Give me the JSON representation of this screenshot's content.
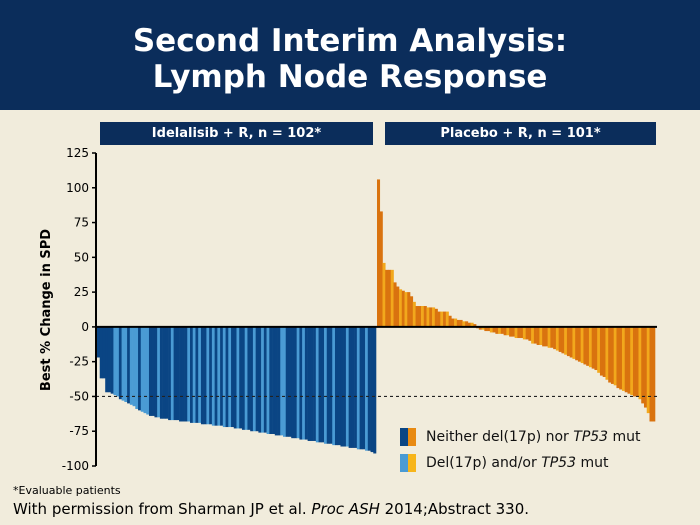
{
  "title": {
    "line1": "Second Interim Analysis:",
    "line2": "Lymph Node Response"
  },
  "footnote": "*Evaluable patients",
  "citation": {
    "pre": "With permission from Sharman JP et al. ",
    "em": "Proc ASH",
    "post": " 2014;Abstract 330."
  },
  "colors": {
    "navy": "#0b2d5b",
    "ide_dark": "#0a4584",
    "ide_light": "#4a9bd4",
    "pla_dark": "#d9730f",
    "pla_light": "#f2a81c"
  },
  "chart_data": {
    "type": "bar",
    "ylabel": "Best % Change in SPD",
    "ylim": [
      -100,
      125
    ],
    "yticks": [
      125,
      100,
      75,
      50,
      25,
      0,
      -25,
      -50,
      -75,
      -100
    ],
    "reference_line": -50,
    "legend": {
      "position": "bottom-right",
      "items": [
        {
          "pre": "Neither del(17p) nor ",
          "em": "TP53",
          "post": " mut"
        },
        {
          "pre": "Del(17p) and/or ",
          "em": "TP53",
          "post": " mut"
        }
      ]
    },
    "panels": [
      {
        "label": "Idelalisib + R, n = 102*",
        "values": [
          -22,
          -37,
          -37,
          -47,
          -47,
          -48,
          -49,
          -50,
          -52,
          -53,
          -54,
          -55,
          -56,
          -57,
          -59,
          -60,
          -61,
          -62,
          -63,
          -64,
          -64,
          -65,
          -65,
          -66,
          -66,
          -66,
          -67,
          -67,
          -67,
          -67,
          -68,
          -68,
          -68,
          -68,
          -69,
          -69,
          -69,
          -69,
          -70,
          -70,
          -70,
          -70,
          -71,
          -71,
          -71,
          -71,
          -72,
          -72,
          -72,
          -72,
          -73,
          -73,
          -73,
          -74,
          -74,
          -74,
          -75,
          -75,
          -75,
          -76,
          -76,
          -76,
          -77,
          -77,
          -77,
          -78,
          -78,
          -78,
          -79,
          -79,
          -79,
          -80,
          -80,
          -80,
          -81,
          -81,
          -81,
          -82,
          -82,
          -82,
          -83,
          -83,
          -83,
          -84,
          -84,
          -84,
          -85,
          -85,
          -85,
          -86,
          -86,
          -86,
          -87,
          -87,
          -87,
          -88,
          -88,
          -88,
          -89,
          -89,
          -90,
          -91
        ],
        "del17p_idx": [
          6,
          7,
          9,
          10,
          12,
          13,
          14,
          16,
          17,
          18,
          22,
          27,
          33,
          35,
          37,
          40,
          42,
          44,
          46,
          48,
          51,
          54,
          57,
          60,
          62,
          67,
          68,
          73,
          75,
          80,
          83,
          86,
          91,
          95,
          98
        ]
      },
      {
        "label": "Placebo + R, n = 101*",
        "values": [
          106,
          83,
          46,
          41,
          41,
          41,
          32,
          29,
          27,
          26,
          25,
          25,
          22,
          18,
          15,
          15,
          15,
          15,
          14,
          14,
          14,
          13,
          11,
          11,
          11,
          11,
          8,
          6,
          6,
          5,
          5,
          4,
          4,
          3,
          3,
          2,
          -1,
          -2,
          -2,
          -3,
          -3,
          -4,
          -4,
          -5,
          -5,
          -5,
          -6,
          -6,
          -7,
          -7,
          -8,
          -8,
          -8,
          -9,
          -9,
          -10,
          -12,
          -12,
          -13,
          -13,
          -14,
          -14,
          -15,
          -15,
          -16,
          -17,
          -18,
          -19,
          -20,
          -21,
          -22,
          -23,
          -24,
          -25,
          -26,
          -27,
          -28,
          -29,
          -30,
          -31,
          -33,
          -35,
          -36,
          -38,
          -40,
          -41,
          -42,
          -44,
          -45,
          -46,
          -47,
          -48,
          -49,
          -50,
          -50,
          -52,
          -55,
          -58,
          -62,
          -68,
          -68
        ],
        "del17p_idx": [
          2,
          5,
          8,
          10,
          13,
          16,
          18,
          20,
          23,
          25,
          28,
          31,
          34,
          38,
          41,
          44,
          47,
          50,
          53,
          56,
          59,
          62,
          65,
          68,
          71,
          74,
          77,
          80,
          83,
          86,
          89,
          92,
          95,
          98
        ]
      }
    ]
  }
}
